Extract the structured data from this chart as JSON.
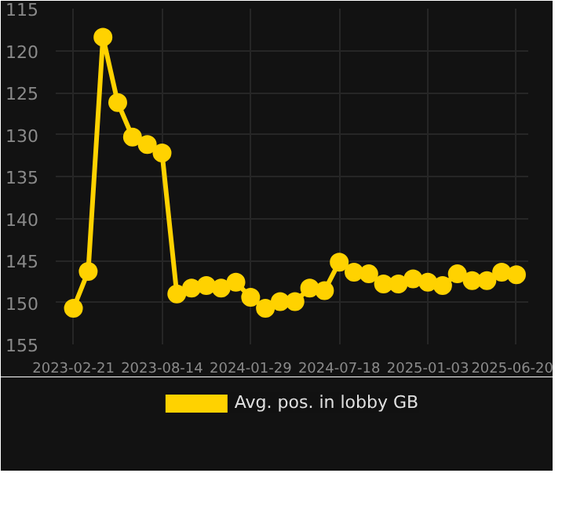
{
  "chart_data": {
    "type": "line",
    "categories": [
      "2023-02-21",
      null,
      null,
      null,
      null,
      null,
      "2023-08-14",
      null,
      null,
      null,
      null,
      null,
      "2024-01-29",
      null,
      null,
      null,
      null,
      null,
      "2024-07-18",
      null,
      null,
      null,
      null,
      null,
      "2025-01-03",
      null,
      null,
      null,
      null,
      null,
      "2025-06-20"
    ],
    "series": [
      {
        "name": "Avg. pos. in lobby GB",
        "color": "#ffd200",
        "values": [
          150.7,
          146.3,
          118.4,
          126.2,
          130.3,
          131.2,
          132.2,
          149.0,
          148.3,
          148.0,
          148.3,
          147.6,
          149.4,
          150.7,
          149.9,
          149.9,
          148.3,
          148.6,
          145.2,
          146.4,
          146.6,
          147.8,
          147.8,
          147.2,
          147.6,
          148.0,
          146.6,
          147.4,
          147.4,
          146.4,
          146.7
        ]
      }
    ],
    "ylim": [
      155,
      115
    ],
    "yticks": [
      115,
      120,
      125,
      130,
      135,
      140,
      145,
      150,
      155
    ],
    "grid": true,
    "legend": "bottom",
    "marker": "circle",
    "line_style": "solid"
  }
}
